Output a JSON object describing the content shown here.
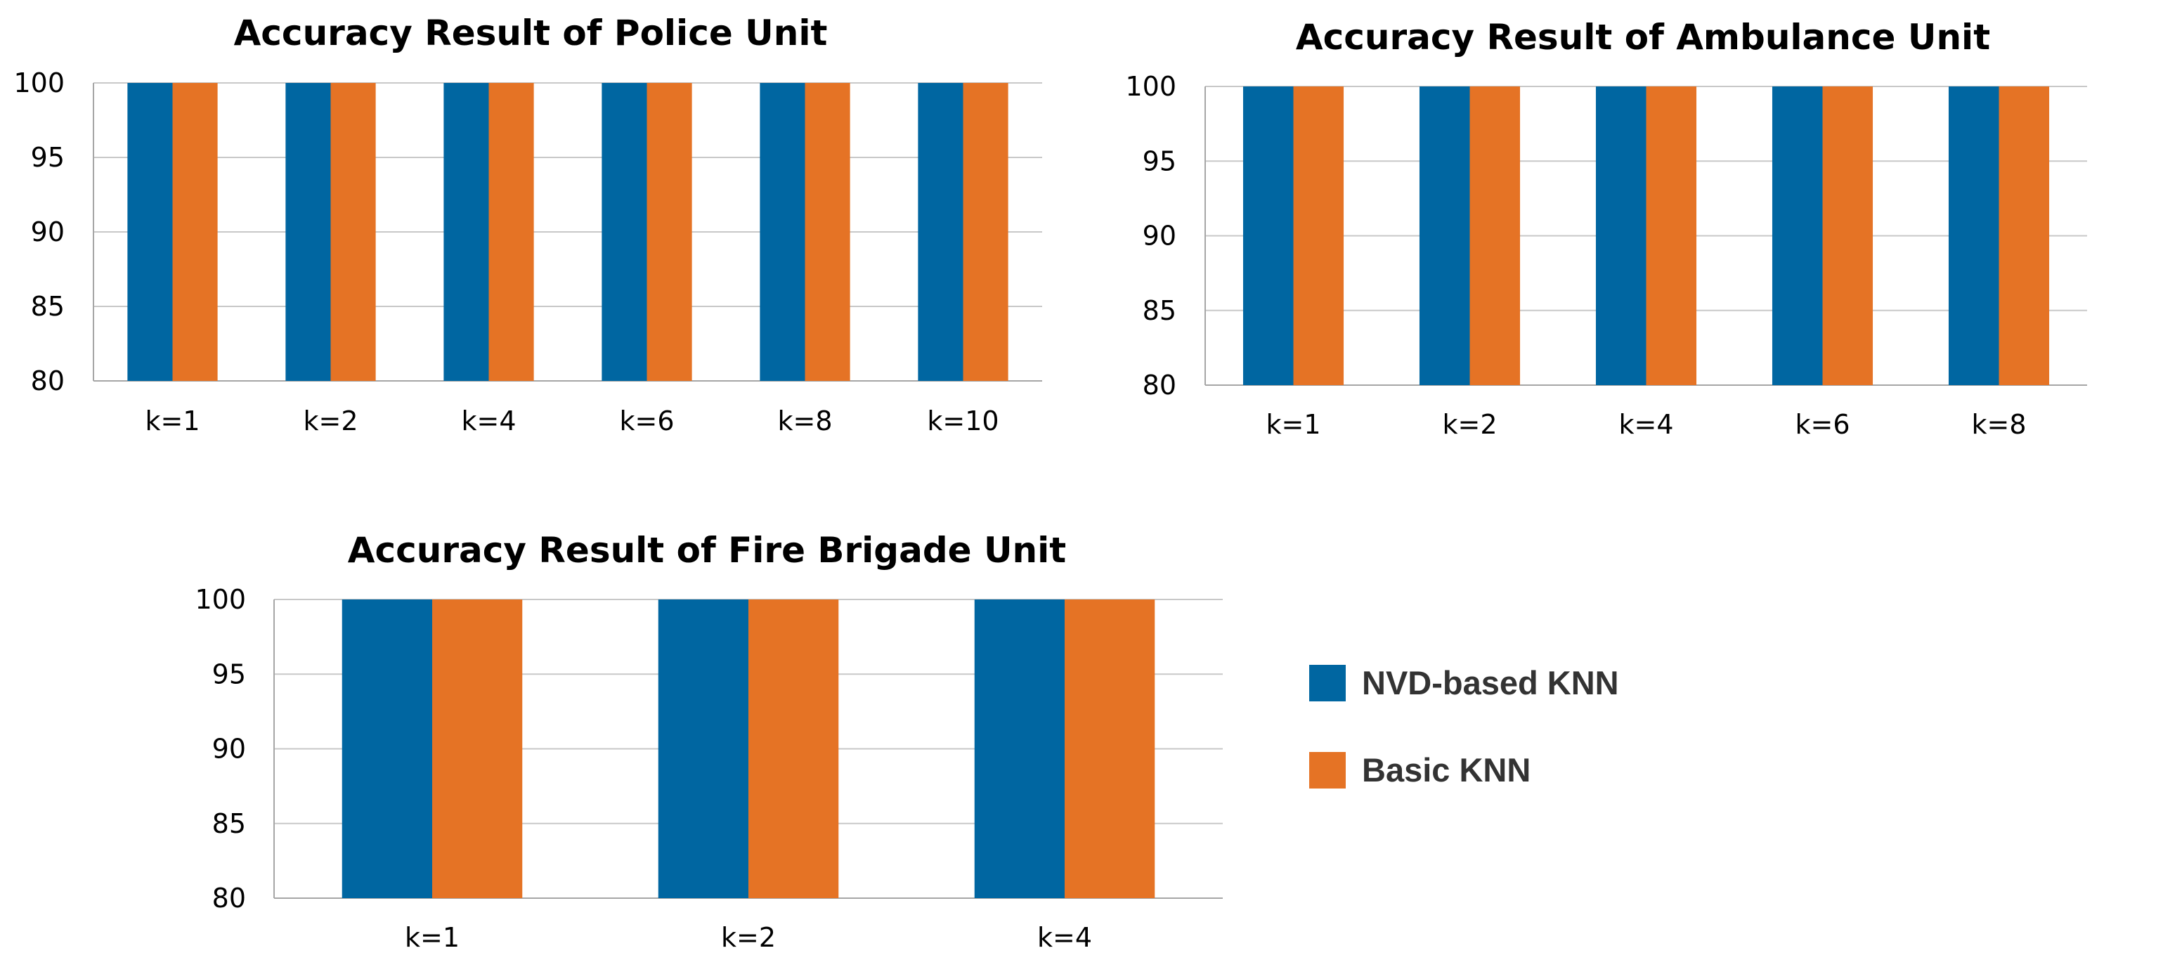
{
  "legend": [
    {
      "label": "NVD-based KNN",
      "color": "#0066a1"
    },
    {
      "label": "Basic KNN",
      "color": "#e57325"
    }
  ],
  "chart_data": [
    {
      "type": "bar",
      "title": "Accuracy Result of Police Unit",
      "categories": [
        "k=1",
        "k=2",
        "k=4",
        "k=6",
        "k=8",
        "k=10"
      ],
      "series": [
        {
          "name": "NVD-based KNN",
          "values": [
            100,
            100,
            100,
            100,
            100,
            100
          ],
          "color": "#0066a1"
        },
        {
          "name": "Basic KNN",
          "values": [
            100,
            100,
            100,
            100,
            100,
            100
          ],
          "color": "#e57325"
        }
      ],
      "ylim": [
        80,
        100
      ],
      "yticks": [
        "80",
        "85",
        "90",
        "95",
        "100"
      ],
      "grid": true,
      "xlabel": "",
      "ylabel": ""
    },
    {
      "type": "bar",
      "title": "Accuracy Result of Ambulance Unit",
      "categories": [
        "k=1",
        "k=2",
        "k=4",
        "k=6",
        "k=8"
      ],
      "series": [
        {
          "name": "NVD-based KNN",
          "values": [
            100,
            100,
            100,
            100,
            100
          ],
          "color": "#0066a1"
        },
        {
          "name": "Basic KNN",
          "values": [
            100,
            100,
            100,
            100,
            100
          ],
          "color": "#e57325"
        }
      ],
      "ylim": [
        80,
        100
      ],
      "yticks": [
        "80",
        "85",
        "90",
        "95",
        "100"
      ],
      "grid": true,
      "xlabel": "",
      "ylabel": ""
    },
    {
      "type": "bar",
      "title": "Accuracy Result of Fire Brigade Unit",
      "categories": [
        "k=1",
        "k=2",
        "k=4"
      ],
      "series": [
        {
          "name": "NVD-based KNN",
          "values": [
            100,
            100,
            100
          ],
          "color": "#0066a1"
        },
        {
          "name": "Basic KNN",
          "values": [
            100,
            100,
            100
          ],
          "color": "#e57325"
        }
      ],
      "ylim": [
        80,
        100
      ],
      "yticks": [
        "80",
        "85",
        "90",
        "95",
        "100"
      ],
      "grid": true,
      "xlabel": "",
      "ylabel": ""
    }
  ]
}
